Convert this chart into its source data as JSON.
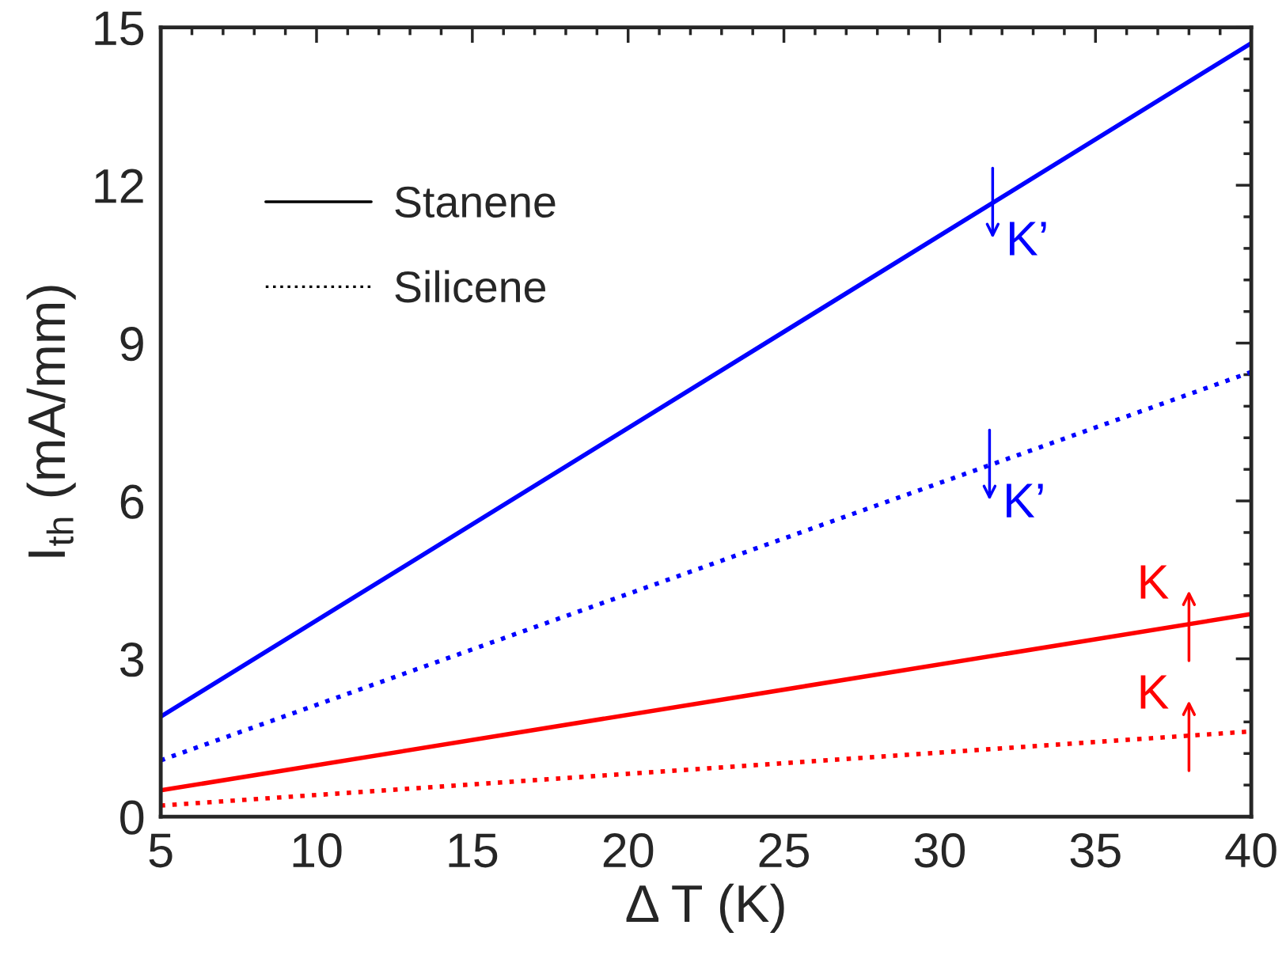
{
  "chart_data": {
    "type": "line",
    "xlabel": "Δ T (K)",
    "ylabel": "I$_{th}$ (mA/mm)",
    "x": [
      5,
      40
    ],
    "series": [
      {
        "color": "#0000ff",
        "line_style": "solid",
        "values": [
          1.9,
          14.7
        ]
      },
      {
        "color": "#0000ff",
        "line_style": "dotted",
        "values": [
          1.07,
          8.45
        ]
      },
      {
        "color": "#ff0000",
        "line_style": "solid",
        "values": [
          0.5,
          3.85
        ]
      },
      {
        "color": "#ff0000",
        "line_style": "dotted",
        "values": [
          0.21,
          1.62
        ]
      }
    ],
    "xlim": [
      5,
      40
    ],
    "xticks": [
      5,
      10,
      15,
      20,
      25,
      30,
      35,
      40
    ],
    "ylim": [
      0,
      15
    ],
    "yticks": [
      0,
      3,
      6,
      9,
      12,
      15
    ],
    "grid": false,
    "marker": "none",
    "annotations": [
      "Stanene",
      "Silicene",
      {
        "text": "K’",
        "x": 31.7,
        "y": 11.66
      },
      {
        "text": "K’",
        "x": 31.6,
        "y": 6.68
      },
      {
        "text": "K",
        "x": 38,
        "y": 3.63
      },
      {
        "text": "K",
        "x": 38,
        "y": 1.54
      }
    ]
  }
}
